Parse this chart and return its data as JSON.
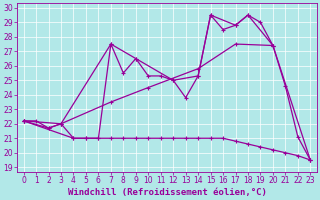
{
  "xlabel": "Windchill (Refroidissement éolien,°C)",
  "xlim": [
    -0.5,
    23.5
  ],
  "ylim": [
    18.7,
    30.3
  ],
  "xticks": [
    0,
    1,
    2,
    3,
    4,
    5,
    6,
    7,
    8,
    9,
    10,
    11,
    12,
    13,
    14,
    15,
    16,
    17,
    18,
    19,
    20,
    21,
    22,
    23
  ],
  "yticks": [
    19,
    20,
    21,
    22,
    23,
    24,
    25,
    26,
    27,
    28,
    29,
    30
  ],
  "bg_color": "#b2e8e8",
  "line_color": "#990099",
  "series": [
    {
      "x": [
        0,
        1,
        2,
        3,
        4,
        5,
        6,
        7,
        8,
        9,
        10,
        11,
        12,
        13,
        14,
        15,
        16,
        17,
        18,
        19,
        20,
        21,
        22,
        23
      ],
      "y": [
        22.2,
        22.2,
        21.7,
        22.0,
        21.0,
        21.0,
        21.0,
        27.5,
        25.5,
        26.5,
        25.3,
        25.3,
        25.0,
        23.8,
        25.3,
        29.5,
        28.5,
        28.8,
        29.5,
        29.0,
        27.4,
        24.6,
        21.1,
        19.5
      ]
    },
    {
      "x": [
        0,
        2,
        3,
        7,
        9,
        12,
        14,
        15,
        17,
        18,
        20,
        23
      ],
      "y": [
        22.2,
        21.7,
        22.0,
        27.5,
        26.5,
        25.0,
        25.3,
        29.5,
        28.8,
        29.5,
        27.4,
        19.5
      ]
    },
    {
      "x": [
        0,
        3,
        7,
        10,
        14,
        17,
        20
      ],
      "y": [
        22.2,
        22.0,
        23.5,
        24.5,
        25.8,
        27.5,
        27.4
      ]
    },
    {
      "x": [
        0,
        4,
        5,
        6,
        7,
        8,
        9,
        10,
        11,
        12,
        13,
        14,
        15,
        16,
        17,
        18,
        19,
        20,
        21,
        22,
        23
      ],
      "y": [
        22.2,
        21.0,
        21.0,
        21.0,
        21.0,
        21.0,
        21.0,
        21.0,
        21.0,
        21.0,
        21.0,
        21.0,
        21.0,
        21.0,
        20.8,
        20.6,
        20.4,
        20.2,
        20.0,
        19.8,
        19.5
      ]
    }
  ],
  "font_size": 6.5,
  "tick_font_size": 5.5
}
